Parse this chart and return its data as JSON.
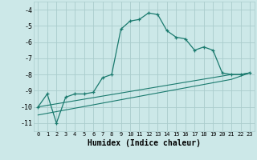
{
  "xlabel": "Humidex (Indice chaleur)",
  "bg_color": "#cce8e8",
  "grid_color": "#aacccc",
  "line_color": "#1a7a6e",
  "xlim": [
    -0.5,
    23.5
  ],
  "ylim": [
    -11.5,
    -3.5
  ],
  "yticks": [
    -11,
    -10,
    -9,
    -8,
    -7,
    -6,
    -5,
    -4
  ],
  "xticks": [
    0,
    1,
    2,
    3,
    4,
    5,
    6,
    7,
    8,
    9,
    10,
    11,
    12,
    13,
    14,
    15,
    16,
    17,
    18,
    19,
    20,
    21,
    22,
    23
  ],
  "xtick_labels": [
    "0",
    "1",
    "2",
    "3",
    "4",
    "5",
    "6",
    "7",
    "8",
    "9",
    "10",
    "11",
    "12",
    "13",
    "14",
    "15",
    "16",
    "17",
    "18",
    "19",
    "20",
    "21",
    "22",
    "23"
  ],
  "line1_x": [
    0,
    1,
    2,
    3,
    4,
    5,
    6,
    7,
    8,
    9,
    10,
    11,
    12,
    13,
    14,
    15,
    16,
    17,
    18,
    19,
    20,
    21,
    22,
    23
  ],
  "line1_y": [
    -10.0,
    -9.2,
    -11.0,
    -9.4,
    -9.2,
    -9.2,
    -9.1,
    -8.2,
    -8.0,
    -5.2,
    -4.7,
    -4.6,
    -4.2,
    -4.3,
    -5.3,
    -5.7,
    -5.8,
    -6.5,
    -6.3,
    -6.5,
    -7.9,
    -8.0,
    -8.0,
    -7.9
  ],
  "line2_x": [
    0,
    21,
    22,
    23
  ],
  "line2_y": [
    -10.0,
    -8.0,
    -8.0,
    -7.9
  ],
  "line3_x": [
    0,
    21,
    22,
    23
  ],
  "line3_y": [
    -10.5,
    -8.3,
    -8.1,
    -7.9
  ],
  "ytick_fontsize": 6,
  "xtick_fontsize": 5,
  "xlabel_fontsize": 7
}
